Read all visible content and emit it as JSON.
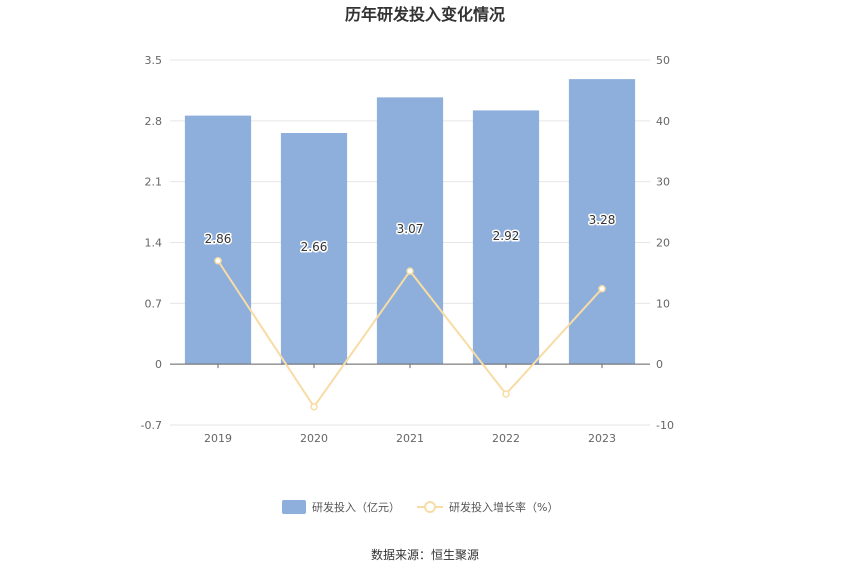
{
  "chart_data": {
    "type": "bar",
    "title": "历年研发投入变化情况",
    "categories": [
      "2019",
      "2020",
      "2021",
      "2022",
      "2023"
    ],
    "series": [
      {
        "name": "研发投入（亿元）",
        "type": "bar",
        "axis": "left",
        "color": "#8eaedb",
        "values": [
          2.86,
          2.66,
          3.07,
          2.92,
          3.28
        ],
        "labels": [
          "2.86",
          "2.66",
          "3.07",
          "2.92",
          "3.28"
        ]
      },
      {
        "name": "研发投入增长率（%）",
        "type": "line",
        "axis": "right",
        "color": "#f7dca5",
        "values": [
          17.0,
          -7.0,
          15.3,
          -4.9,
          12.4
        ]
      }
    ],
    "y_left": {
      "min": -0.7,
      "max": 3.5,
      "ticks": [
        "3.5",
        "2.8",
        "2.1",
        "1.4",
        "0.7",
        "0",
        "-0.7"
      ]
    },
    "y_right": {
      "min": -10,
      "max": 50,
      "ticks": [
        "50",
        "40",
        "30",
        "20",
        "10",
        "0",
        "-10"
      ]
    },
    "grid": true,
    "legend_position": "bottom-center",
    "source": "数据来源：恒生聚源"
  }
}
